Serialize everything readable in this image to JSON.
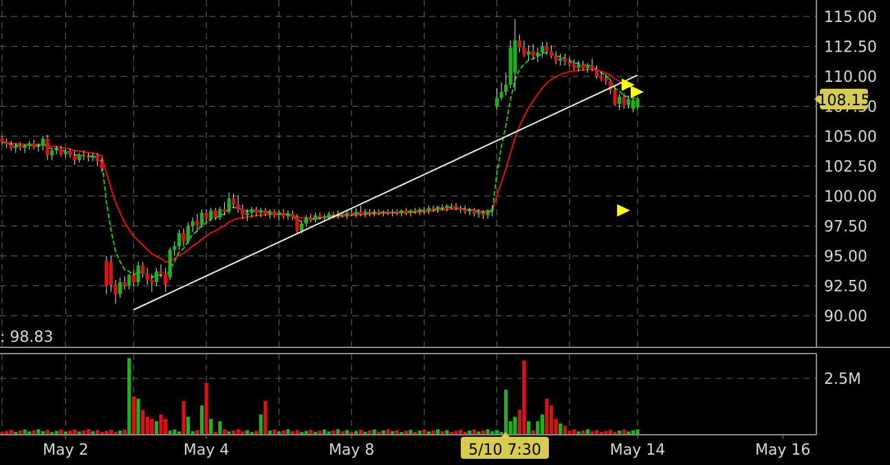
{
  "chart_data": [
    {
      "type": "candlestick",
      "title": "",
      "grid": true,
      "ylim": [
        88.5,
        115.5
      ],
      "y_ticks": [
        "115.00",
        "112.50",
        "110.00",
        "107.50",
        "105.00",
        "102.50",
        "100.00",
        "97.50",
        "95.00",
        "92.50",
        "90.00"
      ],
      "x_ticks": [
        "May 2",
        "May 4",
        "May 8",
        "May 14",
        "May 16"
      ],
      "colors": {
        "up": "#22b022",
        "down": "#dd1111",
        "ma_fast": "#22c022",
        "ma_slow": "#e01010",
        "trendline": "#f0f0f0",
        "signal": "#ffff00",
        "badge": "#d8cc50"
      },
      "crosshair_label": ": 98.83",
      "last_price_label": "108.15",
      "cursor_time_label": "5/10 7:30",
      "candles": [
        [
          104.8,
          105.0,
          104.3,
          104.5
        ],
        [
          104.5,
          104.8,
          104.0,
          104.3
        ],
        [
          104.3,
          104.6,
          103.8,
          104.0
        ],
        [
          104.0,
          104.4,
          103.6,
          104.2
        ],
        [
          104.2,
          104.5,
          103.8,
          104.0
        ],
        [
          104.0,
          104.3,
          103.6,
          104.2
        ],
        [
          104.2,
          104.6,
          103.9,
          104.4
        ],
        [
          104.4,
          104.7,
          103.9,
          104.1
        ],
        [
          104.1,
          104.4,
          103.7,
          104.2
        ],
        [
          104.2,
          105.0,
          103.8,
          104.8
        ],
        [
          104.8,
          105.1,
          103.0,
          103.4
        ],
        [
          103.4,
          104.0,
          103.0,
          103.8
        ],
        [
          103.8,
          104.2,
          103.5,
          103.9
        ],
        [
          103.9,
          104.2,
          103.3,
          103.5
        ],
        [
          103.5,
          103.9,
          103.2,
          103.7
        ],
        [
          103.7,
          104.0,
          103.2,
          103.4
        ],
        [
          103.4,
          103.8,
          102.6,
          103.0
        ],
        [
          103.0,
          103.6,
          102.8,
          103.4
        ],
        [
          103.4,
          103.8,
          103.0,
          103.3
        ],
        [
          103.3,
          103.6,
          102.9,
          103.2
        ],
        [
          103.2,
          103.6,
          102.9,
          103.4
        ],
        [
          103.4,
          103.6,
          102.5,
          102.9
        ],
        [
          102.9,
          103.2,
          102.0,
          102.3
        ],
        [
          94.6,
          95.0,
          91.8,
          92.5
        ],
        [
          94.5,
          95.0,
          92.0,
          92.6
        ],
        [
          92.6,
          93.0,
          91.0,
          91.8
        ],
        [
          91.8,
          93.2,
          91.5,
          92.8
        ],
        [
          92.8,
          93.3,
          92.2,
          92.5
        ],
        [
          92.5,
          93.5,
          92.2,
          93.4
        ],
        [
          93.4,
          93.8,
          92.5,
          92.8
        ],
        [
          92.8,
          94.5,
          92.5,
          94.2
        ],
        [
          94.2,
          94.5,
          93.2,
          93.5
        ],
        [
          93.5,
          94.0,
          92.6,
          93.0
        ],
        [
          93.0,
          93.5,
          92.0,
          92.8
        ],
        [
          92.8,
          94.0,
          92.5,
          93.7
        ],
        [
          93.7,
          94.3,
          93.2,
          93.5
        ],
        [
          93.5,
          94.0,
          92.0,
          92.6
        ],
        [
          93.2,
          95.7,
          93.0,
          95.5
        ],
        [
          95.5,
          96.2,
          95.0,
          95.8
        ],
        [
          95.8,
          97.2,
          95.5,
          96.9
        ],
        [
          96.9,
          97.3,
          95.8,
          96.2
        ],
        [
          96.2,
          97.8,
          96.0,
          97.5
        ],
        [
          97.5,
          98.2,
          97.0,
          97.9
        ],
        [
          97.9,
          98.5,
          97.0,
          97.6
        ],
        [
          97.6,
          98.9,
          97.4,
          98.6
        ],
        [
          98.6,
          98.9,
          97.8,
          98.1
        ],
        [
          98.1,
          99.0,
          97.9,
          98.8
        ],
        [
          98.8,
          99.0,
          98.0,
          98.2
        ],
        [
          98.2,
          99.1,
          98.0,
          98.9
        ],
        [
          98.9,
          99.5,
          98.4,
          98.7
        ],
        [
          98.7,
          100.3,
          98.5,
          99.8
        ],
        [
          99.8,
          100.2,
          99.0,
          99.3
        ],
        [
          99.3,
          100.1,
          98.6,
          98.9
        ],
        [
          98.9,
          99.3,
          98.1,
          98.4
        ],
        [
          98.4,
          98.9,
          97.9,
          98.6
        ],
        [
          98.6,
          99.1,
          98.2,
          98.9
        ],
        [
          98.9,
          99.1,
          98.3,
          98.6
        ],
        [
          98.6,
          99.0,
          98.2,
          98.8
        ],
        [
          98.8,
          99.0,
          98.3,
          98.5
        ],
        [
          98.5,
          98.9,
          98.1,
          98.7
        ],
        [
          98.7,
          98.9,
          98.2,
          98.4
        ],
        [
          98.4,
          98.8,
          98.0,
          98.6
        ],
        [
          98.6,
          98.9,
          98.1,
          98.3
        ],
        [
          98.3,
          98.8,
          98.0,
          98.5
        ],
        [
          98.5,
          98.8,
          98.0,
          98.2
        ],
        [
          98.2,
          98.5,
          96.8,
          97.1
        ],
        [
          97.1,
          97.9,
          96.9,
          97.7
        ],
        [
          97.7,
          98.4,
          97.4,
          98.2
        ],
        [
          98.2,
          98.5,
          97.8,
          98.0
        ],
        [
          98.0,
          98.6,
          97.8,
          98.4
        ],
        [
          98.4,
          98.6,
          98.0,
          98.2
        ],
        [
          98.2,
          98.5,
          97.9,
          98.3
        ],
        [
          98.3,
          98.7,
          98.0,
          98.5
        ],
        [
          98.5,
          98.7,
          98.1,
          98.4
        ],
        [
          98.4,
          98.8,
          98.1,
          98.5
        ],
        [
          98.5,
          98.7,
          98.2,
          98.4
        ],
        [
          98.4,
          98.8,
          98.1,
          98.6
        ],
        [
          98.6,
          98.9,
          98.3,
          98.5
        ],
        [
          98.5,
          99.0,
          98.2,
          98.7
        ],
        [
          98.7,
          99.2,
          98.3,
          98.5
        ],
        [
          98.5,
          98.9,
          98.2,
          98.7
        ],
        [
          98.7,
          98.9,
          98.3,
          98.6
        ],
        [
          98.6,
          98.9,
          98.3,
          98.7
        ],
        [
          98.7,
          98.9,
          98.4,
          98.6
        ],
        [
          98.6,
          98.8,
          98.3,
          98.7
        ],
        [
          98.7,
          98.9,
          98.4,
          98.6
        ],
        [
          98.6,
          98.9,
          98.3,
          98.7
        ],
        [
          98.7,
          98.9,
          98.4,
          98.6
        ],
        [
          98.6,
          98.9,
          98.3,
          98.8
        ],
        [
          98.8,
          99.0,
          98.4,
          98.6
        ],
        [
          98.6,
          98.9,
          98.3,
          98.8
        ],
        [
          98.8,
          99.0,
          98.5,
          98.7
        ],
        [
          98.7,
          99.0,
          98.4,
          98.9
        ],
        [
          98.9,
          99.1,
          98.5,
          98.8
        ],
        [
          98.8,
          99.2,
          98.5,
          99.0
        ],
        [
          99.0,
          99.2,
          98.7,
          98.9
        ],
        [
          98.9,
          99.2,
          98.6,
          99.1
        ],
        [
          99.1,
          99.3,
          98.8,
          99.0
        ],
        [
          99.0,
          99.3,
          98.7,
          99.2
        ],
        [
          99.2,
          99.4,
          98.9,
          99.1
        ],
        [
          99.1,
          99.4,
          98.8,
          99.0
        ],
        [
          99.0,
          99.2,
          98.6,
          98.9
        ],
        [
          98.9,
          99.2,
          98.5,
          98.7
        ],
        [
          98.7,
          99.0,
          98.4,
          98.8
        ],
        [
          98.8,
          99.0,
          98.3,
          98.5
        ],
        [
          98.5,
          98.9,
          98.2,
          98.6
        ],
        [
          98.6,
          98.8,
          98.1,
          98.4
        ],
        [
          98.4,
          98.9,
          98.1,
          98.8
        ],
        [
          98.8,
          99.2,
          98.3,
          98.9
        ],
        [
          107.5,
          109.0,
          107.2,
          108.2
        ],
        [
          108.2,
          109.5,
          108.0,
          108.7
        ],
        [
          108.7,
          110.3,
          108.4,
          109.3
        ],
        [
          109.3,
          113.0,
          109.0,
          112.4
        ],
        [
          110.3,
          114.8,
          108.8,
          113.0
        ],
        [
          113.0,
          113.5,
          112.0,
          112.4
        ],
        [
          112.4,
          113.0,
          111.6,
          111.8
        ],
        [
          111.8,
          112.6,
          111.3,
          112.1
        ],
        [
          112.1,
          112.7,
          111.5,
          111.7
        ],
        [
          111.7,
          112.4,
          111.2,
          112.0
        ],
        [
          112.0,
          112.9,
          111.6,
          112.5
        ],
        [
          112.5,
          112.9,
          111.8,
          112.1
        ],
        [
          112.1,
          112.6,
          111.5,
          111.7
        ],
        [
          111.7,
          112.1,
          111.0,
          111.3
        ],
        [
          111.3,
          111.9,
          110.9,
          111.5
        ],
        [
          111.5,
          111.9,
          110.9,
          111.2
        ],
        [
          111.2,
          111.6,
          110.8,
          111.0
        ],
        [
          111.0,
          111.4,
          110.5,
          110.7
        ],
        [
          110.7,
          111.3,
          110.4,
          111.0
        ],
        [
          111.0,
          111.3,
          110.5,
          110.7
        ],
        [
          110.7,
          111.1,
          110.3,
          110.9
        ],
        [
          110.9,
          111.5,
          110.4,
          110.6
        ],
        [
          110.6,
          110.9,
          109.8,
          110.0
        ],
        [
          110.0,
          110.4,
          109.6,
          109.8
        ],
        [
          109.8,
          110.2,
          109.3,
          109.6
        ],
        [
          109.6,
          109.8,
          108.5,
          108.8
        ],
        [
          108.8,
          109.2,
          107.5,
          107.7
        ],
        [
          107.7,
          108.5,
          107.2,
          108.3
        ],
        [
          108.3,
          108.6,
          107.3,
          107.6
        ],
        [
          107.6,
          108.4,
          107.3,
          108.1
        ],
        [
          107.3,
          108.2,
          107.0,
          108.0
        ],
        [
          107.4,
          108.3,
          107.2,
          108.15
        ]
      ],
      "volume_ticks": [
        "2.5M"
      ],
      "volume_unit_max": 3600000
    }
  ]
}
